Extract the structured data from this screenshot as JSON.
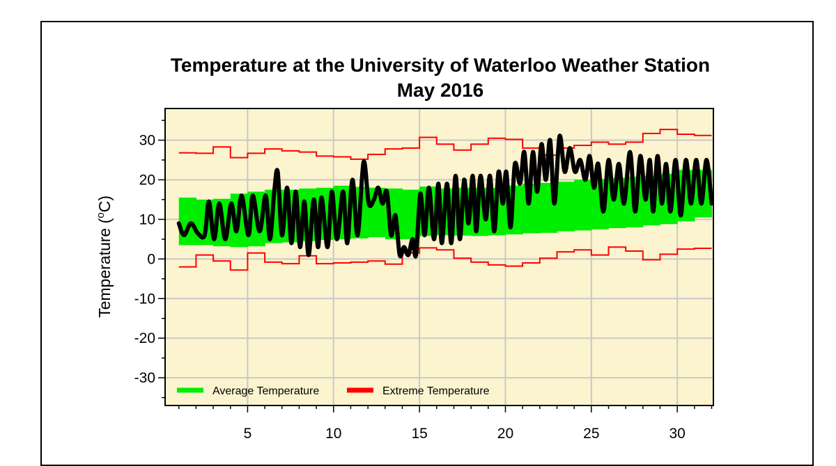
{
  "chart_data": {
    "type": "line",
    "title": "Temperature at the University of Waterloo Weather Station",
    "subtitle": "May 2016",
    "ylabel_main": "Temperature (",
    "ylabel_sup": "o",
    "ylabel_end": "C)",
    "xlim": [
      0.2,
      32.1
    ],
    "ylim": [
      -37,
      38
    ],
    "x_ticks": [
      5,
      10,
      15,
      20,
      25,
      30
    ],
    "y_ticks": [
      30,
      20,
      10,
      0,
      -10,
      -20,
      -30
    ],
    "grid": true,
    "background_color": "#fbf4cf",
    "legend_position": "bottom-left",
    "legend": [
      {
        "label": "Average Temperature",
        "color": "#00ee00"
      },
      {
        "label": "Extreme Temperature",
        "color": "#ff0000"
      }
    ],
    "average_band": {
      "name": "Average Temperature",
      "color": "#00ee00",
      "days": [
        1,
        2,
        3,
        4,
        5,
        6,
        7,
        8,
        9,
        10,
        11,
        12,
        13,
        14,
        15,
        16,
        17,
        18,
        19,
        20,
        21,
        22,
        23,
        24,
        25,
        26,
        27,
        28,
        29,
        30,
        31
      ],
      "low": [
        3.5,
        3.5,
        3.2,
        3.0,
        3.2,
        4.0,
        4.2,
        4.5,
        4.8,
        5.0,
        5.2,
        5.5,
        5.0,
        5.0,
        5.8,
        6.0,
        5.9,
        5.8,
        6.0,
        6.2,
        6.5,
        6.6,
        7.0,
        7.2,
        7.5,
        7.8,
        8.0,
        8.5,
        8.8,
        9.5,
        10.5
      ],
      "high": [
        15.5,
        15.0,
        15.2,
        16.5,
        17.0,
        17.5,
        17.5,
        17.8,
        18.0,
        18.5,
        18.2,
        18.0,
        17.8,
        17.5,
        18.3,
        17.8,
        18.0,
        18.0,
        18.0,
        18.5,
        19.0,
        19.2,
        19.5,
        20.0,
        20.2,
        20.5,
        20.8,
        21.0,
        21.5,
        22.5,
        22.5
      ]
    },
    "extreme_max": {
      "name": "Extreme Temperature",
      "color": "#ff0000",
      "days": [
        1,
        2,
        3,
        4,
        5,
        6,
        7,
        8,
        9,
        10,
        11,
        12,
        13,
        14,
        15,
        16,
        17,
        18,
        19,
        20,
        21,
        22,
        23,
        24,
        25,
        26,
        27,
        28,
        29,
        30,
        31
      ],
      "values": [
        26.8,
        26.7,
        28.3,
        25.6,
        26.7,
        27.8,
        27.3,
        27.0,
        26.0,
        25.8,
        25.2,
        26.4,
        27.8,
        28.0,
        30.7,
        29.0,
        27.5,
        29.0,
        30.5,
        30.2,
        28.0,
        26.2,
        28.0,
        28.7,
        29.5,
        29.0,
        29.5,
        31.7,
        32.7,
        31.5,
        31.2
      ]
    },
    "extreme_min": {
      "name": "Extreme Temperature",
      "color": "#ff0000",
      "days": [
        1,
        2,
        3,
        4,
        5,
        6,
        7,
        8,
        9,
        10,
        11,
        12,
        13,
        14,
        15,
        16,
        17,
        18,
        19,
        20,
        21,
        22,
        23,
        24,
        25,
        26,
        27,
        28,
        29,
        30,
        31
      ],
      "values": [
        -2.0,
        1.0,
        -0.5,
        -2.8,
        1.5,
        -0.8,
        -1.2,
        0.8,
        -1.2,
        -1.0,
        -0.8,
        -0.5,
        -1.3,
        1.5,
        2.8,
        2.3,
        0.2,
        -0.8,
        -1.5,
        -1.8,
        -1.0,
        0.2,
        1.8,
        2.3,
        1.0,
        3.0,
        2.0,
        -0.2,
        1.2,
        2.5,
        2.7
      ]
    },
    "observed": {
      "name": "Temperature",
      "color": "#000000",
      "x": [
        1.0,
        1.3,
        1.7,
        2.1,
        2.5,
        2.75,
        3.05,
        3.35,
        3.7,
        4.05,
        4.35,
        4.65,
        5.05,
        5.3,
        5.7,
        6.05,
        6.3,
        6.55,
        6.75,
        7.0,
        7.3,
        7.55,
        7.8,
        8.05,
        8.3,
        8.55,
        8.85,
        9.1,
        9.3,
        9.65,
        9.9,
        10.2,
        10.55,
        10.8,
        11.1,
        11.4,
        11.75,
        12.05,
        12.35,
        12.6,
        12.85,
        13.1,
        13.35,
        13.6,
        13.85,
        14.1,
        14.35,
        14.6,
        14.8,
        15.05,
        15.3,
        15.55,
        15.85,
        16.1,
        16.3,
        16.6,
        16.85,
        17.1,
        17.35,
        17.6,
        17.85,
        18.1,
        18.3,
        18.55,
        18.85,
        19.1,
        19.35,
        19.6,
        19.85,
        20.05,
        20.3,
        20.55,
        20.85,
        21.1,
        21.35,
        21.6,
        21.85,
        22.1,
        22.35,
        22.6,
        22.85,
        23.15,
        23.45,
        23.75,
        24.05,
        24.35,
        24.65,
        24.9,
        25.15,
        25.4,
        25.7,
        26.0,
        26.3,
        26.6,
        26.9,
        27.25,
        27.55,
        27.85,
        28.15,
        28.4,
        28.6,
        28.85,
        29.1,
        29.35,
        29.6,
        29.9,
        30.2,
        30.5,
        30.8,
        31.1,
        31.4,
        31.7,
        32.0
      ],
      "y": [
        9.0,
        6.0,
        9.0,
        6.5,
        6.0,
        14.5,
        5.0,
        14.0,
        5.0,
        14.0,
        7.0,
        16.0,
        6.0,
        16.0,
        7.0,
        16.0,
        5.0,
        17.0,
        22.0,
        6.0,
        18.0,
        4.0,
        17.0,
        3.0,
        14.5,
        1.0,
        15.0,
        3.0,
        15.5,
        3.0,
        17.0,
        5.0,
        17.0,
        4.0,
        20.0,
        6.0,
        24.5,
        14.0,
        15.0,
        18.0,
        14.0,
        17.0,
        6.0,
        11.0,
        1.0,
        3.0,
        1.0,
        5.0,
        1.0,
        16.5,
        6.0,
        18.0,
        5.0,
        19.0,
        4.0,
        19.0,
        4.0,
        21.0,
        5.0,
        20.0,
        9.0,
        21.0,
        7.0,
        21.0,
        10.0,
        21.0,
        7.0,
        22.0,
        14.0,
        22.0,
        8.0,
        24.0,
        19.0,
        27.0,
        14.0,
        27.0,
        17.0,
        29.0,
        20.0,
        30.0,
        14.0,
        31.0,
        22.0,
        28.0,
        22.0,
        25.0,
        20.0,
        26.0,
        18.0,
        24.0,
        12.0,
        25.0,
        15.0,
        24.0,
        14.0,
        27.0,
        12.0,
        26.0,
        15.0,
        25.0,
        12.0,
        26.0,
        14.0,
        24.0,
        12.0,
        25.0,
        11.0,
        25.0,
        14.0,
        25.0,
        14.0,
        25.0,
        14.0
      ]
    }
  }
}
